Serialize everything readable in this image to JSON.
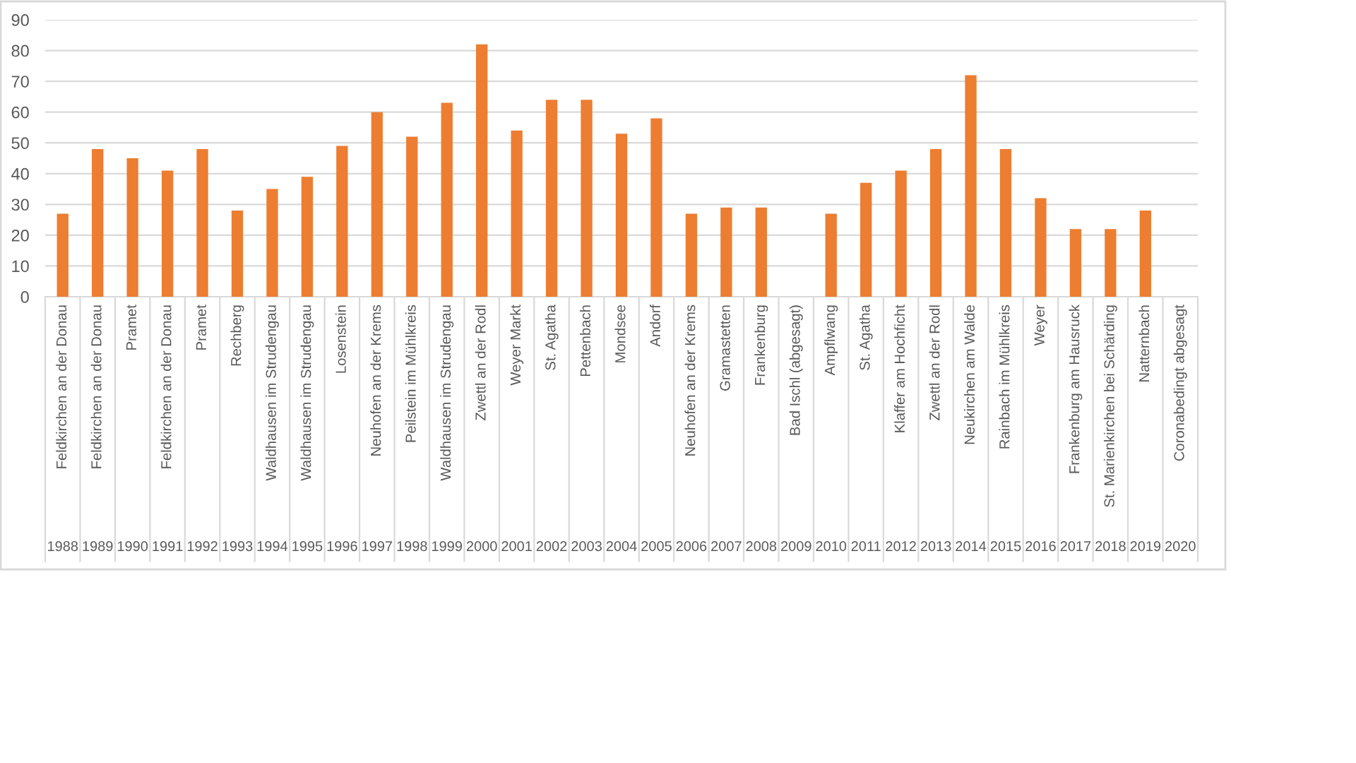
{
  "chart_data": {
    "type": "bar",
    "categories": [
      "Feldkirchen an der Donau\n1988",
      "Feldkirchen an der Donau\n1989",
      "Pramet\n1990",
      "Feldkirchen an der Donau\n1991",
      "Pramet\n1992",
      "Rechberg\n1993",
      "Waldhausen im Strudengau\n1994",
      "Waldhausen im Strudengau\n1995",
      "Losenstein\n1996",
      "Neuhofen an der Krems\n1997",
      "Peilstein im Mühlkreis\n1998",
      "Waldhausen im Strudengau\n1999",
      "Zwettl an der Rodl\n2000",
      "Weyer Markt\n2001",
      "St. Agatha\n2002",
      "Pettenbach\n2003",
      "Mondsee\n2004",
      "Andorf\n2005",
      "Neuhofen an der Krems\n2006",
      "Gramastetten\n2007",
      "Frankenburg\n2008",
      "Bad Ischl (abgesagt)\n2009",
      "Ampflwang\n2010",
      "St. Agatha\n2011",
      "Klaffer am Hochficht\n2012",
      "Zwettl an der Rodl\n2013",
      "Neukirchen am Walde\n2014",
      "Rainbach im Mühlkreis\n2015",
      "Weyer\n2016",
      "Frankenburg am Hausruck\n2017",
      "St. Marienkirchen bei Schärding\n2018",
      "Natternbach\n2019",
      "Coronabedingt abgesagt\n2020"
    ],
    "values": [
      27,
      48,
      45,
      41,
      48,
      28,
      35,
      39,
      49,
      60,
      52,
      63,
      82,
      54,
      64,
      64,
      53,
      58,
      27,
      29,
      29,
      null,
      27,
      37,
      41,
      48,
      72,
      48,
      32,
      22,
      22,
      28,
      null
    ],
    "color": "#ed7d31",
    "ylim": [
      0,
      90
    ],
    "yticks": [
      0,
      10,
      20,
      30,
      40,
      50,
      60,
      70,
      80,
      90
    ],
    "grid": "y"
  }
}
